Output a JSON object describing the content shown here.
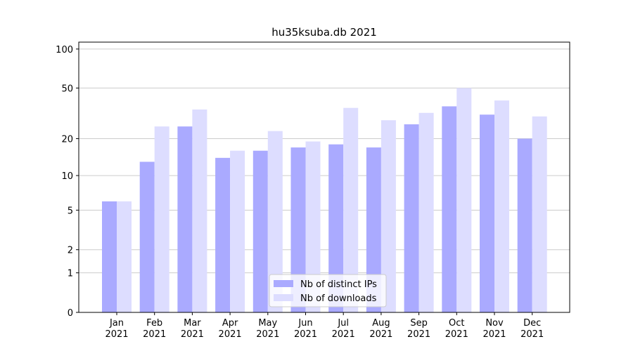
{
  "chart_data": {
    "type": "bar",
    "title": "hu35ksuba.db 2021",
    "categories": [
      "Jan\n2021",
      "Feb\n2021",
      "Mar\n2021",
      "Apr\n2021",
      "May\n2021",
      "Jun\n2021",
      "Jul\n2021",
      "Aug\n2021",
      "Sep\n2021",
      "Oct\n2021",
      "Nov\n2021",
      "Dec\n2021"
    ],
    "series": [
      {
        "name": "Nb of distinct IPs",
        "color": "#aaaaff",
        "values": [
          6,
          13,
          25,
          14,
          16,
          17,
          18,
          17,
          26,
          36,
          31,
          20
        ]
      },
      {
        "name": "Nb of downloads",
        "color": "#ddddff",
        "values": [
          6,
          25,
          34,
          16,
          23,
          19,
          35,
          28,
          32,
          50,
          40,
          30
        ]
      }
    ],
    "yscale": "log1p",
    "ylim": [
      0,
      113
    ],
    "yticks": [
      0,
      1,
      2,
      5,
      10,
      20,
      50,
      100
    ],
    "grid": true,
    "legend": "lower center"
  }
}
